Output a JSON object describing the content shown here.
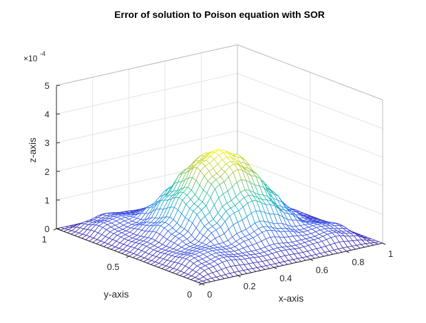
{
  "chart_data": {
    "type": "surface",
    "title": "Error of solution to Poison equation with SOR",
    "xlabel": "x-axis",
    "ylabel": "y-axis",
    "zlabel": "z-axis",
    "xlim": [
      0,
      1
    ],
    "ylim": [
      0,
      1
    ],
    "zlim": [
      0,
      5
    ],
    "z_scale_label": "×10",
    "z_scale_exponent": "-4",
    "x_ticks": [
      "0",
      "0.2",
      "0.4",
      "0.6",
      "0.8",
      "1"
    ],
    "y_ticks": [
      "0",
      "0.5",
      "1"
    ],
    "z_ticks": [
      "0",
      "1",
      "2",
      "3",
      "4",
      "5"
    ],
    "grid": true,
    "colormap": [
      "#3e26a8",
      "#3a5cf3",
      "#1ea7d8",
      "#2fc59a",
      "#b3c540",
      "#f9fb15"
    ],
    "surface": {
      "description_units": "z in units of 1e-4",
      "x": [
        0,
        0.1,
        0.2,
        0.3,
        0.4,
        0.5,
        0.6,
        0.7,
        0.8,
        0.9,
        1.0
      ],
      "y": [
        0,
        0.1,
        0.2,
        0.3,
        0.4,
        0.5,
        0.6,
        0.7,
        0.8,
        0.9,
        1.0
      ],
      "z": [
        [
          0,
          0,
          0,
          0,
          0,
          0,
          0,
          0,
          0,
          0,
          0
        ],
        [
          0,
          0.3,
          0.45,
          0.35,
          0.3,
          0.35,
          0.3,
          0.35,
          0.45,
          0.3,
          0
        ],
        [
          0,
          0.45,
          0.55,
          0.5,
          0.7,
          0.9,
          0.7,
          0.5,
          0.55,
          0.45,
          0
        ],
        [
          0,
          0.35,
          0.5,
          1.0,
          1.5,
          1.8,
          1.5,
          1.0,
          0.5,
          0.35,
          0
        ],
        [
          0,
          0.3,
          0.7,
          1.5,
          2.3,
          2.7,
          2.3,
          1.5,
          0.7,
          0.3,
          0
        ],
        [
          0,
          0.35,
          0.9,
          1.8,
          2.7,
          3.0,
          2.7,
          1.8,
          0.9,
          0.35,
          0
        ],
        [
          0,
          0.3,
          0.7,
          1.5,
          2.3,
          2.7,
          2.3,
          1.5,
          0.7,
          0.3,
          0
        ],
        [
          0,
          0.35,
          0.5,
          1.0,
          1.5,
          1.8,
          1.5,
          1.0,
          0.5,
          0.35,
          0
        ],
        [
          0,
          0.45,
          0.55,
          0.5,
          0.7,
          0.9,
          0.7,
          0.5,
          0.55,
          0.45,
          0
        ],
        [
          0,
          0.3,
          0.45,
          0.35,
          0.3,
          0.35,
          0.3,
          0.35,
          0.45,
          0.3,
          0
        ],
        [
          0,
          0,
          0,
          0,
          0,
          0,
          0,
          0,
          0,
          0,
          0
        ]
      ]
    }
  }
}
